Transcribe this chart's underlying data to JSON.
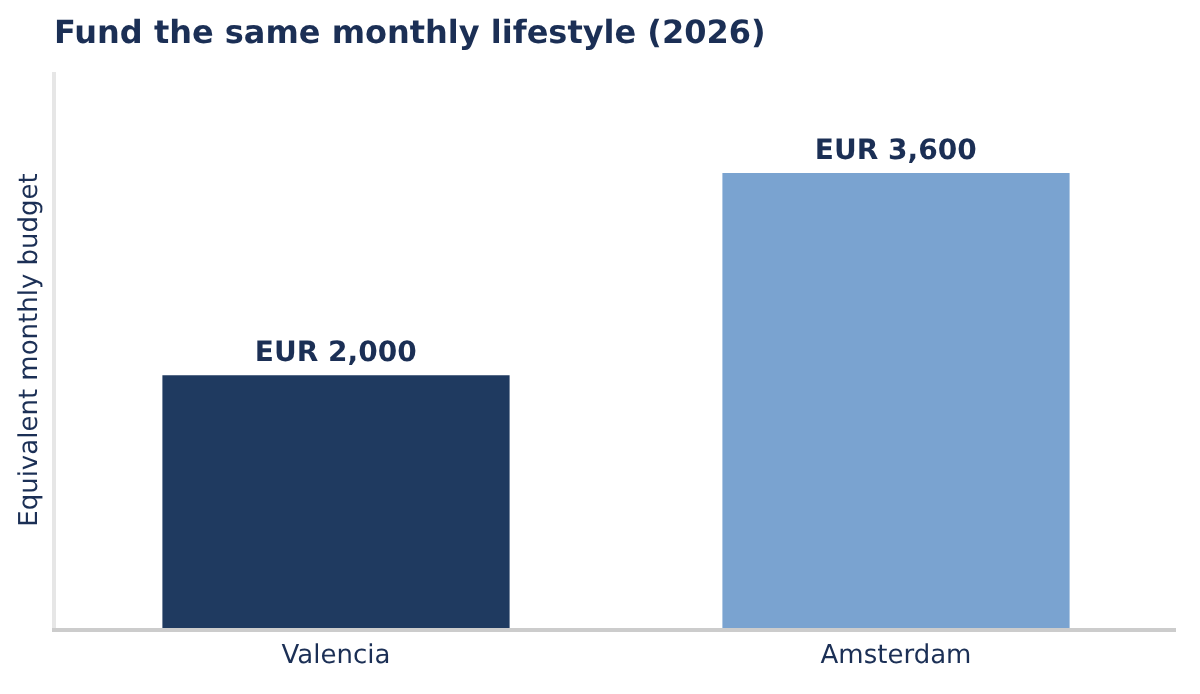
{
  "chart_data": {
    "type": "bar",
    "title": "Fund the same monthly lifestyle (2026)",
    "ylabel": "Equivalent monthly budget",
    "categories": [
      "Valencia",
      "Amsterdam"
    ],
    "values": [
      2000,
      3600
    ],
    "colors": [
      "#1f3a60",
      "#7aa3d0"
    ],
    "value_labels": [
      "EUR 2,000",
      "EUR 3,600"
    ],
    "ylim": [
      0,
      4400
    ],
    "tick_labels": "x"
  }
}
